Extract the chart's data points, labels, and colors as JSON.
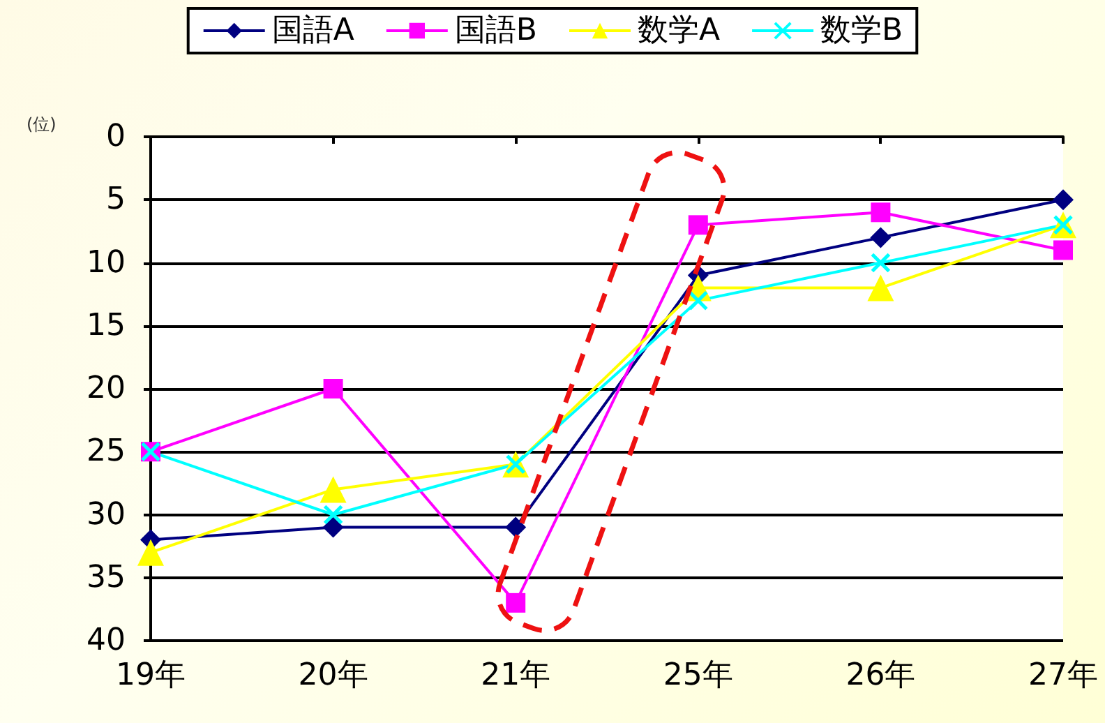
{
  "chart_data": {
    "type": "line",
    "ylabel": "(位)",
    "categories": [
      "19年",
      "20年",
      "21年",
      "25年",
      "26年",
      "27年"
    ],
    "series": [
      {
        "name": "国語A",
        "color": "#000080",
        "marker": "diamond",
        "values": [
          32,
          31,
          31,
          11,
          8,
          5
        ]
      },
      {
        "name": "国語B",
        "color": "#ff00ff",
        "marker": "square",
        "values": [
          25,
          20,
          37,
          7,
          6,
          9
        ]
      },
      {
        "name": "数学A",
        "color": "#ffff00",
        "marker": "triangle",
        "values": [
          33,
          28,
          26,
          12,
          12,
          7
        ]
      },
      {
        "name": "数学B",
        "color": "#00ffff",
        "marker": "cross",
        "values": [
          25,
          30,
          26,
          13,
          10,
          7
        ]
      }
    ],
    "ylim": [
      40,
      0
    ],
    "yticks": [
      0,
      5,
      10,
      15,
      20,
      25,
      30,
      35,
      40
    ],
    "grid": "y",
    "legend": "top",
    "line_style": "solid"
  }
}
